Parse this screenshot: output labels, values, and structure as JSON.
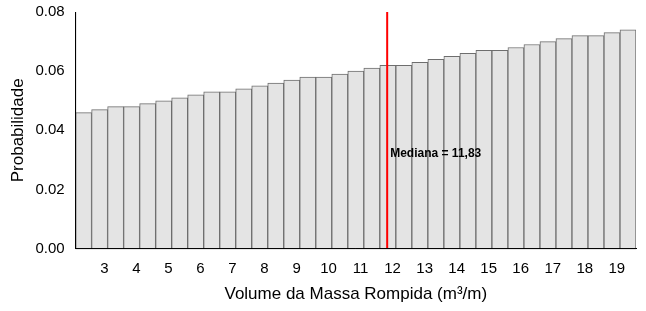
{
  "chart_data": {
    "type": "histogram",
    "x_label": "Volume da Massa Rompida (m³/m)",
    "y_label": "Probabilidade",
    "bins": [
      2.1,
      2.6,
      3.1,
      3.6,
      4.1,
      4.6,
      5.1,
      5.6,
      6.1,
      6.6,
      7.1,
      7.6,
      8.1,
      8.6,
      9.1,
      9.6,
      10.1,
      10.6,
      11.1,
      11.6,
      12.1,
      12.6,
      13.1,
      13.6,
      14.1,
      14.6,
      15.1,
      15.6,
      16.1,
      16.6,
      17.1,
      17.6,
      18.1,
      18.6,
      19.1,
      19.6
    ],
    "values": [
      0.046,
      0.047,
      0.048,
      0.048,
      0.049,
      0.05,
      0.051,
      0.052,
      0.053,
      0.053,
      0.054,
      0.055,
      0.056,
      0.057,
      0.058,
      0.058,
      0.059,
      0.06,
      0.061,
      0.062,
      0.062,
      0.063,
      0.064,
      0.065,
      0.066,
      0.067,
      0.067,
      0.068,
      0.069,
      0.07,
      0.071,
      0.072,
      0.072,
      0.073,
      0.074
    ],
    "color": "#e4e4e4",
    "xlim": [
      2.1,
      19.6
    ],
    "xticks": [
      3,
      4,
      5,
      6,
      7,
      8,
      9,
      10,
      11,
      12,
      13,
      14,
      15,
      16,
      17,
      18,
      19
    ],
    "ylim": [
      0,
      0.08
    ],
    "yticks": [
      {
        "value": 0,
        "label": "0.00"
      },
      0.02,
      0.04,
      0.06,
      0.08
    ],
    "grid": false,
    "annotations": [
      {
        "x": 11.83,
        "text": "Mediana = 11,83",
        "color": "#ff0000"
      }
    ]
  }
}
